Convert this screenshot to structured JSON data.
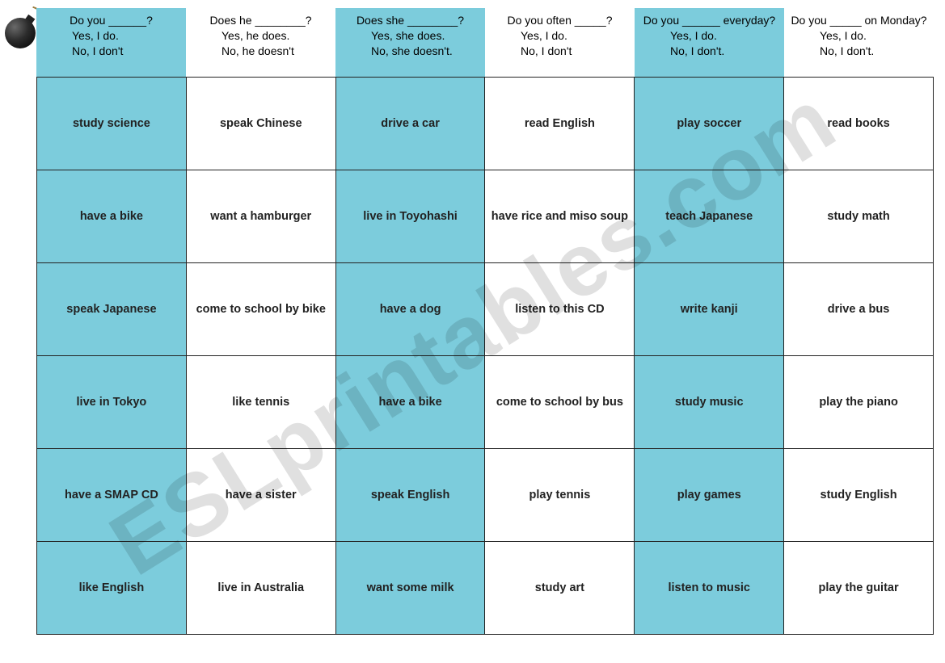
{
  "colors": {
    "blue": "#7cccdc",
    "white": "#ffffff",
    "border": "#222222",
    "text": "#000000",
    "watermark": "rgba(0,0,0,0.12)"
  },
  "watermark_text": "ESLprintables.com",
  "headers": [
    {
      "question": "Do you ______?",
      "yes": "Yes, I do.",
      "no": "No, I don't",
      "blue": true
    },
    {
      "question": "Does he ________?",
      "yes": "Yes, he does.",
      "no": "No, he doesn't",
      "blue": false
    },
    {
      "question": "Does she ________?",
      "yes": "Yes, she does.",
      "no": "No, she doesn't.",
      "blue": true
    },
    {
      "question": "Do you often _____?",
      "yes": "Yes, I do.",
      "no": "No, I don't",
      "blue": false
    },
    {
      "question": "Do you ______ everyday?",
      "yes": "Yes, I do.",
      "no": "No, I don't.",
      "blue": true
    },
    {
      "question": "Do you _____ on Monday?",
      "yes": "Yes, I do.",
      "no": "No, I don't.",
      "blue": false
    }
  ],
  "rows": [
    [
      "study science",
      "speak Chinese",
      "drive a car",
      "read English",
      "play soccer",
      "read books"
    ],
    [
      "have a bike",
      "want a hamburger",
      "live in Toyohashi",
      "have rice and miso soup",
      "teach Japanese",
      "study math"
    ],
    [
      "speak Japanese",
      "come to school by bike",
      "have a dog",
      "listen to this CD",
      "write kanji",
      "drive a bus"
    ],
    [
      "live in Tokyo",
      "like tennis",
      "have a bike",
      "come to school by bus",
      "study music",
      "play the piano"
    ],
    [
      "have a SMAP CD",
      "have a sister",
      "speak English",
      "play tennis",
      "play games",
      "study English"
    ],
    [
      "like English",
      "live in Australia",
      "want some milk",
      "study art",
      "listen to music",
      "play the guitar"
    ]
  ],
  "column_colors": [
    "blue",
    "white",
    "blue",
    "white",
    "blue",
    "white"
  ]
}
